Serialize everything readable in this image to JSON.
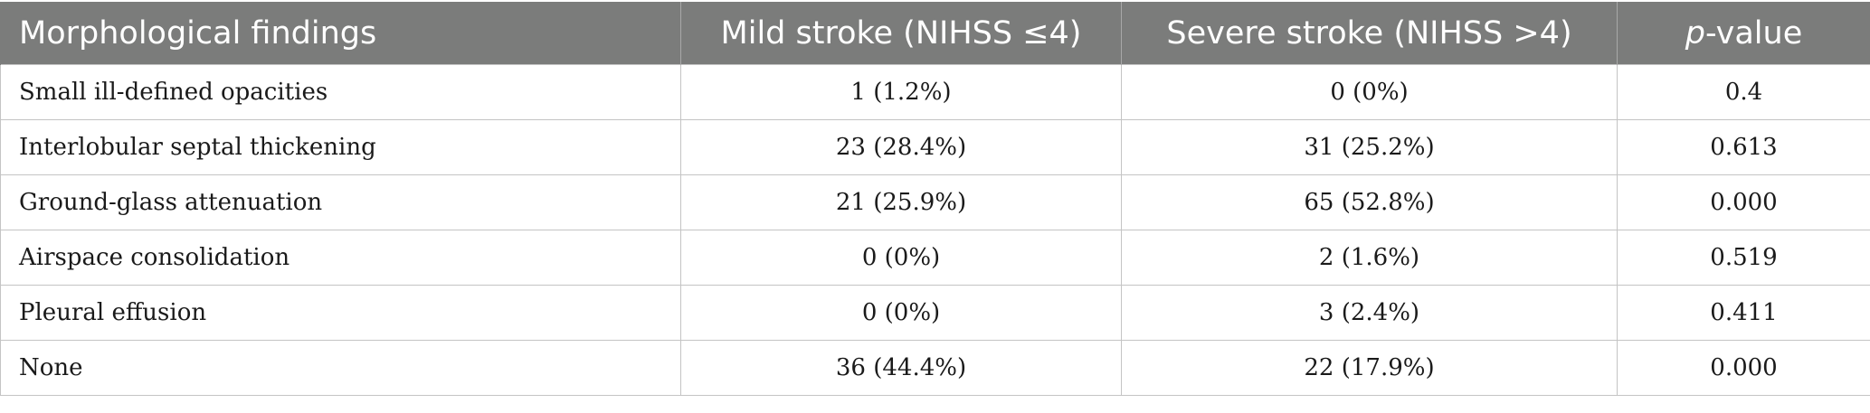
{
  "table": {
    "headers": {
      "findings": "Morphological findings",
      "mild": "Mild stroke (NIHSS ≤4)",
      "severe": "Severe stroke (NIHSS >4)",
      "p_italic": "p",
      "p_rest": "-value"
    },
    "rows": [
      {
        "finding": "Small ill-defined opacities",
        "mild": "1 (1.2%)",
        "severe": "0 (0%)",
        "p": "0.4"
      },
      {
        "finding": "Interlobular septal thickening",
        "mild": "23 (28.4%)",
        "severe": "31 (25.2%)",
        "p": "0.613"
      },
      {
        "finding": "Ground-glass attenuation",
        "mild": "21 (25.9%)",
        "severe": "65 (52.8%)",
        "p": "0.000"
      },
      {
        "finding": "Airspace consolidation",
        "mild": "0 (0%)",
        "severe": "2 (1.6%)",
        "p": "0.519"
      },
      {
        "finding": "Pleural effusion",
        "mild": "0 (0%)",
        "severe": "3 (2.4%)",
        "p": "0.411"
      },
      {
        "finding": "None",
        "mild": "36 (44.4%)",
        "severe": "22 (17.9%)",
        "p": "0.000"
      }
    ]
  },
  "colors": {
    "header_bg": "#7b7c7b",
    "header_text": "#ffffff",
    "border": "#c4c4c4"
  }
}
